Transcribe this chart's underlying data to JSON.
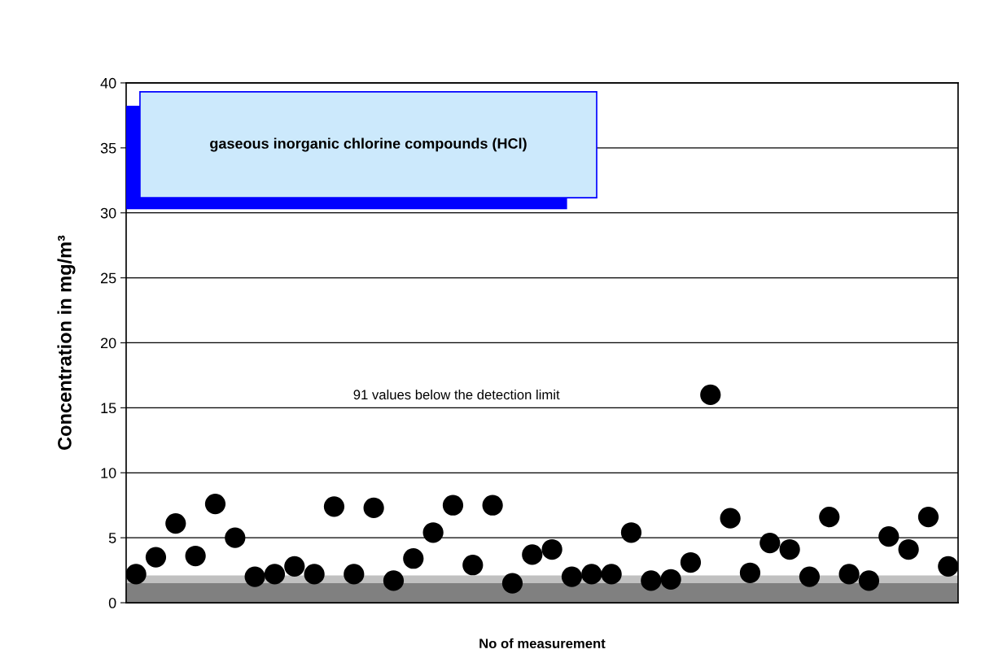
{
  "chart_data": {
    "type": "scatter",
    "title": "gaseous inorganic chlorine compounds (HCl)",
    "xlabel": "No of measurement",
    "ylabel": "Concentration in mg/m³",
    "categories": [
      null,
      null,
      null,
      null,
      null,
      null,
      null,
      null,
      null,
      null,
      null,
      null,
      null,
      null,
      null,
      null,
      null,
      null,
      null,
      null,
      null,
      null,
      null,
      null,
      null,
      null,
      null,
      null,
      null,
      null,
      null,
      null,
      null,
      null,
      null,
      null,
      null,
      null,
      null,
      null,
      null,
      null
    ],
    "series": [
      {
        "color": "#000000",
        "values": [
          2.2,
          3.5,
          6.1,
          3.6,
          7.6,
          5.0,
          2.0,
          2.2,
          2.8,
          2.2,
          7.4,
          2.2,
          7.3,
          1.7,
          3.4,
          5.4,
          7.5,
          2.9,
          7.5,
          1.5,
          3.7,
          4.1,
          2.0,
          2.2,
          2.2,
          5.4,
          1.7,
          1.8,
          3.1,
          16.0,
          6.5,
          2.3,
          4.6,
          4.1,
          2.0,
          6.6,
          2.2,
          1.7,
          5.1,
          4.1,
          6.6,
          2.8
        ]
      }
    ],
    "ylim": [
      0,
      40
    ],
    "yticks": [
      0,
      5,
      10,
      15,
      20,
      25,
      30,
      35,
      40
    ],
    "grid": "y",
    "marker": "circle",
    "legend": false,
    "bands": [
      {
        "axis": "y",
        "from": 0,
        "to": 1.5,
        "color": "#808080"
      },
      {
        "axis": "y",
        "from": 1.5,
        "to": 2.1,
        "color": "#c0c0c0"
      }
    ],
    "annotations": [
      "91 values below the detection limit"
    ]
  }
}
